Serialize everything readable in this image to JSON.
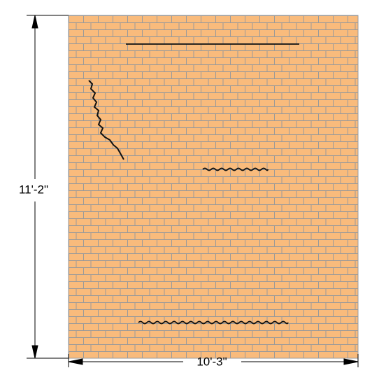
{
  "dimensions": {
    "height": "11'-2\"",
    "width": "10'-3\""
  }
}
